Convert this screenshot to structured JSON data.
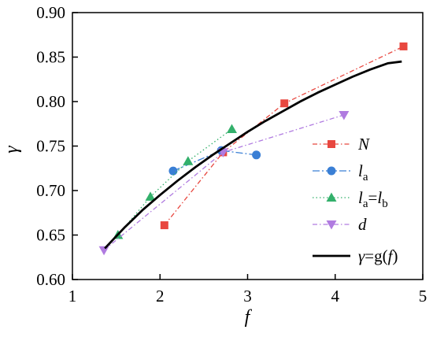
{
  "chart_data": {
    "type": "line",
    "xlabel": "f",
    "ylabel": "γ",
    "xlim": [
      1,
      5
    ],
    "ylim": [
      0.6,
      0.9
    ],
    "x_ticks": [
      "1",
      "2",
      "3",
      "4",
      "5"
    ],
    "y_ticks": [
      "0.60",
      "0.65",
      "0.70",
      "0.75",
      "0.80",
      "0.85",
      "0.90"
    ],
    "grid": false,
    "legend_position": "bottom-right",
    "series": [
      {
        "name": "N",
        "marker": "square",
        "line_style": "dash-dot",
        "color": "#e8473f",
        "x": [
          2.05,
          2.72,
          3.42,
          4.78
        ],
        "y": [
          0.661,
          0.743,
          0.798,
          0.862
        ]
      },
      {
        "name": "la",
        "marker": "circle",
        "line_style": "dash-dot-long",
        "color": "#3a7fd5",
        "x": [
          2.15,
          2.7,
          3.1
        ],
        "y": [
          0.722,
          0.745,
          0.74
        ]
      },
      {
        "name": "la=lb",
        "marker": "triangle-up",
        "line_style": "dotted",
        "color": "#33b06b",
        "x": [
          1.52,
          1.89,
          2.32,
          2.82
        ],
        "y": [
          0.65,
          0.693,
          0.733,
          0.769
        ]
      },
      {
        "name": "d",
        "marker": "triangle-down",
        "line_style": "dash-dot",
        "color": "#b07be0",
        "x": [
          1.36,
          2.72,
          4.1
        ],
        "y": [
          0.633,
          0.743,
          0.785
        ]
      },
      {
        "name": "γ=g(f)",
        "marker": "none",
        "line_style": "solid",
        "color": "#000000",
        "x": [
          1.37,
          1.6,
          1.8,
          2.0,
          2.2,
          2.4,
          2.6,
          2.8,
          3.0,
          3.2,
          3.4,
          3.6,
          3.8,
          4.0,
          4.2,
          4.4,
          4.6,
          4.76
        ],
        "y": [
          0.635,
          0.659,
          0.678,
          0.695,
          0.711,
          0.726,
          0.74,
          0.753,
          0.766,
          0.778,
          0.789,
          0.8,
          0.81,
          0.819,
          0.828,
          0.836,
          0.843,
          0.845
        ]
      }
    ]
  }
}
